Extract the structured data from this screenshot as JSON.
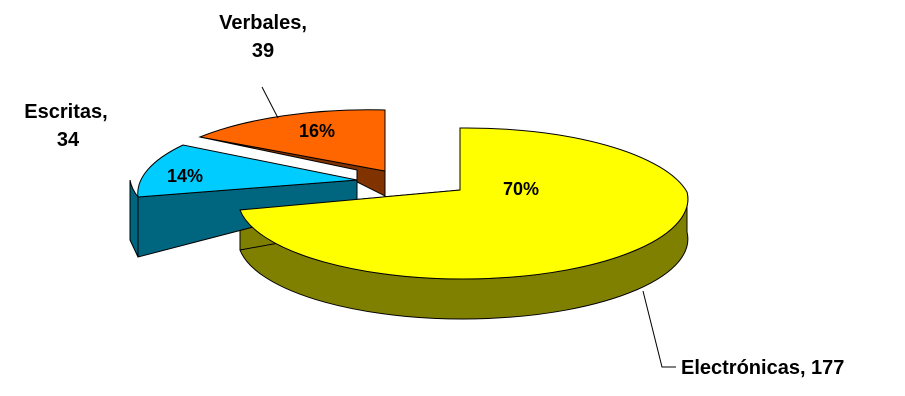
{
  "chart_data": {
    "type": "pie",
    "style": "3d-exploded",
    "title": "",
    "slices": [
      {
        "category": "Electrónicas",
        "value": 177,
        "percent_label": "70%",
        "value_label": "177",
        "top_color": "#FFFF00",
        "side_color": "#808000"
      },
      {
        "category": "Escritas",
        "value": 34,
        "percent_label": "14%",
        "value_label": "34",
        "top_color": "#00CCFF",
        "side_color": "#006680"
      },
      {
        "category": "Verbales",
        "value": 39,
        "percent_label": "16%",
        "value_label": "39",
        "top_color": "#FF6600",
        "side_color": "#803300"
      }
    ],
    "labels": {
      "electronicas": "Electrónicas, 177",
      "escritas_line1": "Escritas,",
      "escritas_line2": "34",
      "verbales_line1": "Verbales,",
      "verbales_line2": "39"
    },
    "legend": "none",
    "grid": false
  }
}
